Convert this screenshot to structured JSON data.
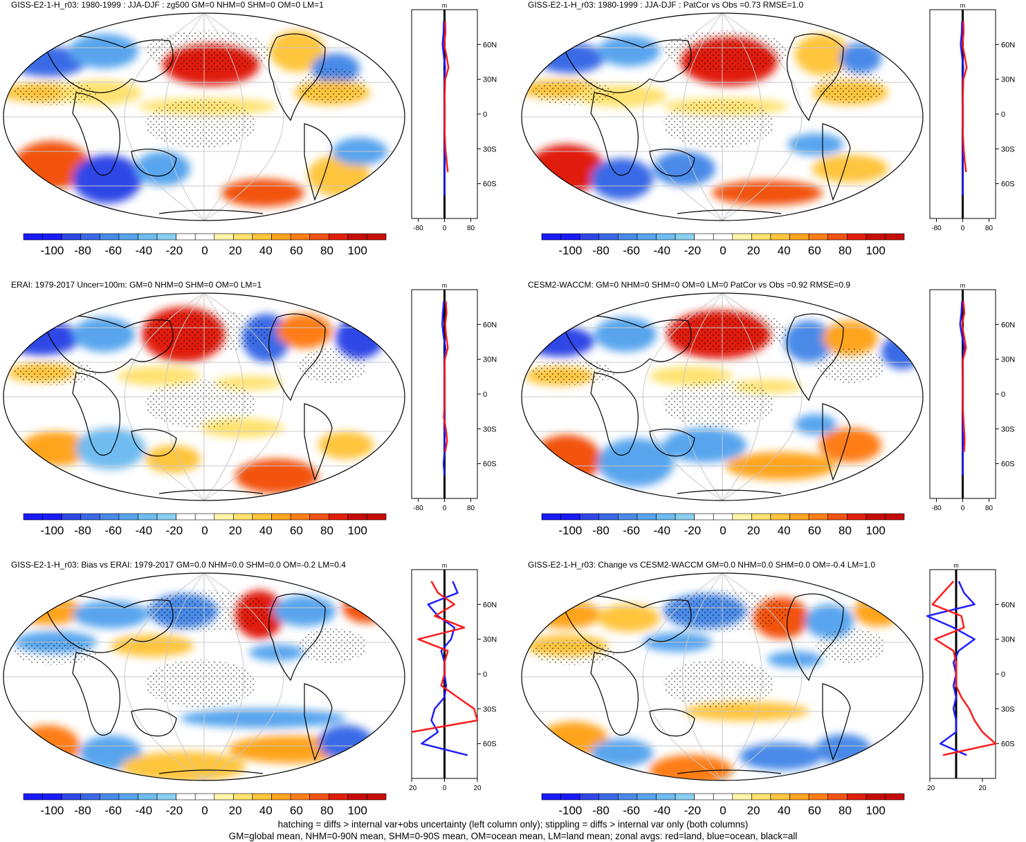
{
  "colorbar": {
    "colors": [
      "#1a1aff",
      "#2e47e6",
      "#3b6ae6",
      "#4a8ae8",
      "#58a5ee",
      "#6fbcf0",
      "#8bd0f3",
      "#ffffff",
      "#ffffff",
      "#fff5a8",
      "#ffe26f",
      "#ffc53d",
      "#ffa41f",
      "#ff7d15",
      "#f25311",
      "#e01f0d",
      "#c60b0b"
    ],
    "tick_labels": [
      "-100",
      "-80",
      "-60",
      "-40",
      "-20",
      "0",
      "20",
      "40",
      "60",
      "80",
      "100"
    ]
  },
  "zonal_axis": {
    "lat_labels": [
      "60N",
      "30N",
      "0",
      "30S",
      "60S"
    ],
    "top_unit": "m"
  },
  "panels": [
    {
      "title": "GISS-E2-1-H_r03: 1980-1999 : JJA-DJF : zg500 GM=0 NHM=0 SHM=0 OM=0 LM=1",
      "x_ticks": [
        "-80",
        "0",
        "80"
      ],
      "x_range": [
        -100,
        100
      ]
    },
    {
      "title": "GISS-E2-1-H_r03: 1980-1999 : JJA-DJF : PatCor vs Obs =0.73 RMSE=1.0",
      "x_ticks": [
        "-80",
        "0",
        "80"
      ],
      "x_range": [
        -100,
        100
      ]
    },
    {
      "title": "ERAI: 1979-2017 Uncer=100m: GM=0 NHM=0 SHM=0 OM=0 LM=1",
      "x_ticks": [
        "-80",
        "0",
        "80"
      ],
      "x_range": [
        -100,
        100
      ]
    },
    {
      "title": "CESM2-WACCM: GM=0 NHM=0 SHM=0 OM=0 LM=0 PatCor vs Obs =0.92 RMSE=0.9",
      "x_ticks": [
        "-80",
        "0",
        "80"
      ],
      "x_range": [
        -100,
        100
      ]
    },
    {
      "title": "GISS-E2-1-H_r03: Bias vs ERAI: 1979-2017 GM=0.0 NHM=0.0 SHM=0.0 OM=-0.2 LM=0.4",
      "x_ticks": [
        "-20",
        "0",
        "20"
      ],
      "x_range": [
        -20,
        20
      ]
    },
    {
      "title": "GISS-E2-1-H_r03: Change vs CESM2-WACCM GM=0.0 NHM=0.0 SHM=0.0 OM=-0.4 LM=1.0",
      "x_ticks": [
        "-20",
        "20"
      ],
      "x_range": [
        -20,
        30
      ]
    }
  ],
  "footer": {
    "line1": "hatching = diffs > internal var+obs uncertainty (left column only); stippling = diffs > internal var only (both columns)",
    "line2": "GM=global mean, NHM=0-90N mean, SHM=0-90S mean, OM=ocean mean, LM=land mean; zonal avgs: red=land, blue=ocean, black=all"
  },
  "chart_data": [
    {
      "type": "heatmap",
      "title": "GISS-E2-1-H_r03: 1980-1999 : JJA-DJF : zg500 GM=0 NHM=0 SHM=0 OM=0 LM=1",
      "units": "m",
      "colorbar_range": [
        -110,
        110
      ],
      "zonal_mean": {
        "lat": [
          80,
          70,
          60,
          50,
          40,
          30,
          20,
          10,
          0,
          -10,
          -20,
          -30,
          -40,
          -50,
          -60,
          -70
        ],
        "land": [
          2,
          3,
          -1,
          6,
          12,
          2,
          1,
          0,
          0,
          0,
          1,
          3,
          6,
          10,
          null,
          -6
        ],
        "ocean": [
          -2,
          -3,
          -6,
          -2,
          2,
          0,
          0,
          0,
          0,
          0,
          0,
          0,
          0,
          0,
          0,
          0
        ]
      }
    },
    {
      "type": "heatmap",
      "title": "GISS-E2-1-H_r03: 1980-1999 : JJA-DJF : PatCor vs Obs =0.73 RMSE=1.0",
      "units": "m",
      "colorbar_range": [
        -110,
        110
      ],
      "zonal_mean": {
        "lat": [
          80,
          70,
          60,
          50,
          40,
          30,
          20,
          10,
          0,
          -10,
          -20,
          -30,
          -40,
          -50,
          -60,
          -70
        ],
        "land": [
          2,
          3,
          -1,
          6,
          12,
          2,
          1,
          0,
          0,
          0,
          1,
          3,
          6,
          10,
          null,
          -6
        ],
        "ocean": [
          -2,
          -3,
          -6,
          -2,
          2,
          0,
          0,
          0,
          0,
          0,
          0,
          0,
          0,
          0,
          0,
          0
        ]
      }
    },
    {
      "type": "heatmap",
      "title": "ERAI: 1979-2017 Uncer=100m: GM=0 NHM=0 SHM=0 OM=0 LM=1",
      "units": "m",
      "colorbar_range": [
        -110,
        110
      ],
      "zonal_mean": {
        "lat": [
          80,
          70,
          60,
          50,
          40,
          30,
          20,
          10,
          0,
          -10,
          -20,
          -30,
          -40,
          -50,
          -60,
          -70
        ],
        "land": [
          4,
          6,
          2,
          5,
          10,
          1,
          0,
          0,
          0,
          0,
          -2,
          4,
          8,
          2,
          null,
          -8
        ],
        "ocean": [
          -2,
          -5,
          -7,
          -3,
          3,
          0,
          0,
          0,
          0,
          0,
          0,
          0,
          0,
          0,
          -3,
          0
        ]
      }
    },
    {
      "type": "heatmap",
      "title": "CESM2-WACCM: GM=0 NHM=0 SHM=0 OM=0 LM=0 PatCor vs Obs =0.92 RMSE=0.9",
      "units": "m",
      "colorbar_range": [
        -110,
        110
      ],
      "zonal_mean": {
        "lat": [
          80,
          70,
          60,
          50,
          40,
          30,
          20,
          10,
          0,
          -10,
          -20,
          -30,
          -40,
          -50,
          -60,
          -70
        ],
        "land": [
          2,
          5,
          -2,
          4,
          10,
          1,
          0,
          0,
          0,
          0,
          2,
          4,
          6,
          4,
          null,
          -6
        ],
        "ocean": [
          -2,
          -4,
          -8,
          -2,
          5,
          0,
          0,
          0,
          0,
          0,
          0,
          0,
          0,
          0,
          0,
          0
        ]
      }
    },
    {
      "type": "heatmap",
      "title": "GISS-E2-1-H_r03: Bias vs ERAI: 1979-2017 GM=0.0 NHM=0.0 SHM=0.0 OM=-0.2 LM=0.4",
      "units": "m",
      "colorbar_range": [
        -110,
        110
      ],
      "zonal_mean": {
        "lat": [
          80,
          70,
          60,
          50,
          40,
          30,
          20,
          10,
          0,
          -10,
          -20,
          -30,
          -40,
          -50,
          -60,
          -70
        ],
        "land": [
          -8,
          -4,
          6,
          -6,
          12,
          -16,
          2,
          0,
          0,
          -2,
          8,
          18,
          20,
          -20,
          null,
          -10
        ],
        "ocean": [
          5,
          8,
          -10,
          -4,
          6,
          4,
          -2,
          0,
          0,
          1,
          0,
          -6,
          -8,
          -4,
          -14,
          14
        ]
      }
    },
    {
      "type": "heatmap",
      "title": "GISS-E2-1-H_r03: Change vs CESM2-WACCM GM=0.0 NHM=0.0 SHM=0.0 OM=-0.4 LM=1.0",
      "units": "m",
      "colorbar_range": [
        -110,
        110
      ],
      "zonal_mean": {
        "lat": [
          80,
          70,
          60,
          50,
          40,
          30,
          20,
          10,
          0,
          -10,
          -20,
          -30,
          -40,
          -50,
          -60,
          -70
        ],
        "land": [
          -2,
          -10,
          -18,
          4,
          6,
          -16,
          -2,
          0,
          0,
          0,
          4,
          10,
          14,
          20,
          30,
          -10
        ],
        "ocean": [
          2,
          6,
          14,
          -22,
          -2,
          14,
          2,
          -2,
          0,
          -2,
          0,
          -2,
          0,
          0,
          -12,
          8
        ]
      }
    }
  ]
}
